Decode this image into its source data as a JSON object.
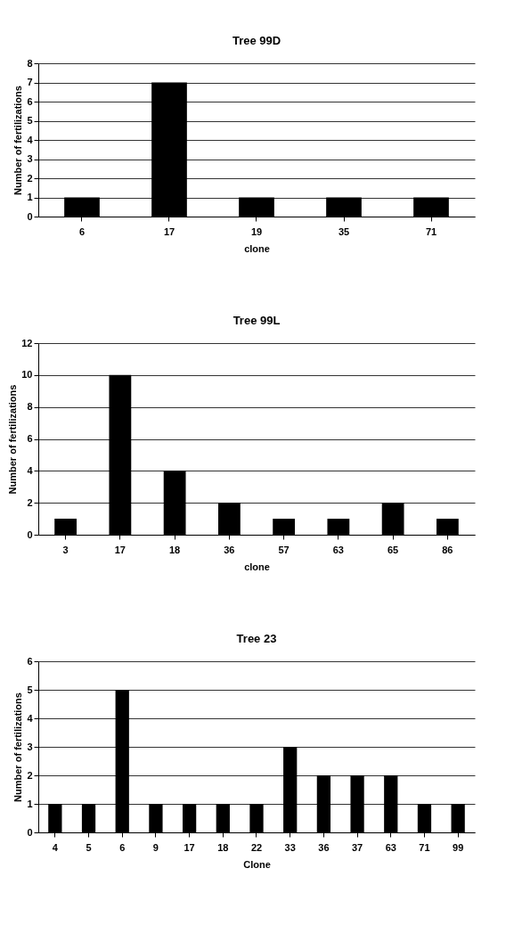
{
  "chart_data": [
    {
      "type": "bar",
      "title": "Tree 99D",
      "xlabel": "clone",
      "ylabel": "Number of fertilizations",
      "categories": [
        "6",
        "17",
        "19",
        "35",
        "71"
      ],
      "values": [
        1,
        7,
        1,
        1,
        1
      ],
      "color": "#000000",
      "ylim": [
        0,
        8
      ],
      "yticks": [
        0,
        1,
        2,
        3,
        4,
        5,
        6,
        7,
        8
      ],
      "grid": "y"
    },
    {
      "type": "bar",
      "title": "Tree 99L",
      "xlabel": "clone",
      "ylabel": "Number of fertilizations",
      "categories": [
        "3",
        "17",
        "18",
        "36",
        "57",
        "63",
        "65",
        "86"
      ],
      "values": [
        1,
        10,
        4,
        2,
        1,
        1,
        2,
        1
      ],
      "color": "#000000",
      "ylim": [
        0,
        12
      ],
      "yticks": [
        0,
        2,
        4,
        6,
        8,
        10,
        12
      ],
      "grid": "y"
    },
    {
      "type": "bar",
      "title": "Tree 23",
      "xlabel": "Clone",
      "ylabel": "Number of fertilizations",
      "categories": [
        "4",
        "5",
        "6",
        "9",
        "17",
        "18",
        "22",
        "33",
        "36",
        "37",
        "63",
        "71",
        "99"
      ],
      "values": [
        1,
        1,
        5,
        1,
        1,
        1,
        1,
        3,
        2,
        2,
        2,
        1,
        1
      ],
      "color": "#000000",
      "ylim": [
        0,
        6
      ],
      "yticks": [
        0,
        1,
        2,
        3,
        4,
        5,
        6
      ],
      "grid": "y"
    }
  ]
}
